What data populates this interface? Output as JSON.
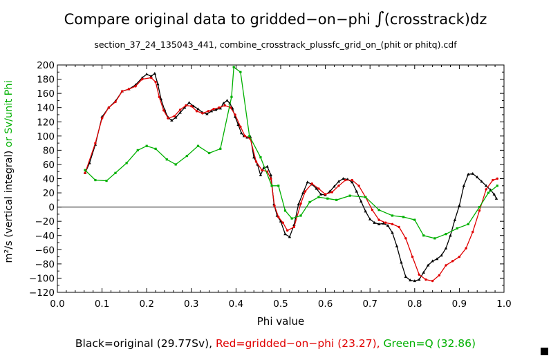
{
  "title": {
    "prefix": "Compare original data to gridded−on−phi ",
    "integral_symbol": "∫",
    "suffix": "(crosstrack)dz"
  },
  "subtitle": "section_37_24_135043_441, combine_crosstrack_plussfc_grid_on_(phit or phitq).cdf",
  "legend": {
    "black": "Black=original (29.77Sv), ",
    "red": "Red=gridded−on−phi (23.27), ",
    "green": "Green=Q (32.86)"
  },
  "chart_data": {
    "type": "line",
    "xlabel": "Phi value",
    "ylabel_black": "m²/s (vertical integral)",
    "ylabel_green": " or Sv/unit Phi",
    "xlim": [
      0.0,
      1.0
    ],
    "ylim": [
      -120,
      200
    ],
    "x_ticks": [
      "0.0",
      "0.1",
      "0.2",
      "0.3",
      "0.4",
      "0.5",
      "0.6",
      "0.7",
      "0.8",
      "0.9",
      "1.0"
    ],
    "y_ticks": [
      "-120",
      "-100",
      "-80",
      "-60",
      "-40",
      "-20",
      "0",
      "20",
      "40",
      "60",
      "80",
      "100",
      "120",
      "140",
      "160",
      "180",
      "200"
    ],
    "zero_line": true,
    "series": [
      {
        "name": "original",
        "color": "#000000",
        "marker": "triangle",
        "x": [
          0.062,
          0.072,
          0.085,
          0.1,
          0.115,
          0.13,
          0.145,
          0.16,
          0.175,
          0.19,
          0.2,
          0.21,
          0.218,
          0.225,
          0.232,
          0.24,
          0.248,
          0.256,
          0.265,
          0.275,
          0.285,
          0.295,
          0.305,
          0.315,
          0.325,
          0.335,
          0.345,
          0.355,
          0.365,
          0.372,
          0.38,
          0.386,
          0.392,
          0.398,
          0.405,
          0.412,
          0.418,
          0.425,
          0.432,
          0.44,
          0.448,
          0.455,
          0.462,
          0.47,
          0.478,
          0.485,
          0.492,
          0.5,
          0.51,
          0.52,
          0.53,
          0.54,
          0.55,
          0.56,
          0.57,
          0.58,
          0.59,
          0.6,
          0.61,
          0.62,
          0.63,
          0.64,
          0.65,
          0.66,
          0.67,
          0.68,
          0.69,
          0.7,
          0.71,
          0.72,
          0.73,
          0.74,
          0.75,
          0.76,
          0.77,
          0.78,
          0.79,
          0.8,
          0.81,
          0.82,
          0.83,
          0.84,
          0.85,
          0.86,
          0.87,
          0.88,
          0.89,
          0.9,
          0.91,
          0.92,
          0.93,
          0.94,
          0.95,
          0.96,
          0.97,
          0.978,
          0.983
        ],
        "y": [
          48,
          62,
          88,
          127,
          140,
          149,
          163,
          166,
          172,
          182,
          187,
          184,
          188,
          173,
          152,
          137,
          126,
          122,
          126,
          133,
          140,
          147,
          142,
          138,
          133,
          131,
          135,
          137,
          139,
          146,
          150,
          146,
          139,
          127,
          116,
          104,
          100,
          98,
          99,
          70,
          60,
          45,
          55,
          57,
          45,
          4,
          -12,
          -20,
          -38,
          -42,
          -25,
          4,
          20,
          35,
          32,
          26,
          18,
          17,
          22,
          29,
          36,
          40,
          39,
          35,
          22,
          8,
          -6,
          -17,
          -22,
          -24,
          -23,
          -26,
          -36,
          -55,
          -78,
          -98,
          -103,
          -104,
          -102,
          -92,
          -82,
          -76,
          -73,
          -68,
          -58,
          -40,
          -18,
          2,
          30,
          46,
          47,
          42,
          36,
          30,
          24,
          18,
          12
        ]
      },
      {
        "name": "gridded-on-phi",
        "color": "#e00000",
        "marker": "circle",
        "x": [
          0.062,
          0.085,
          0.1,
          0.115,
          0.13,
          0.145,
          0.16,
          0.175,
          0.19,
          0.21,
          0.22,
          0.228,
          0.238,
          0.248,
          0.262,
          0.275,
          0.288,
          0.3,
          0.312,
          0.325,
          0.338,
          0.35,
          0.362,
          0.375,
          0.388,
          0.398,
          0.41,
          0.42,
          0.432,
          0.445,
          0.458,
          0.47,
          0.478,
          0.486,
          0.495,
          0.505,
          0.515,
          0.53,
          0.545,
          0.555,
          0.57,
          0.585,
          0.6,
          0.615,
          0.63,
          0.645,
          0.66,
          0.675,
          0.69,
          0.705,
          0.72,
          0.735,
          0.75,
          0.765,
          0.78,
          0.795,
          0.81,
          0.825,
          0.84,
          0.855,
          0.87,
          0.885,
          0.9,
          0.915,
          0.93,
          0.945,
          0.96,
          0.975,
          0.985
        ],
        "y": [
          48,
          90,
          125,
          140,
          148,
          163,
          166,
          170,
          180,
          182,
          176,
          155,
          136,
          125,
          128,
          137,
          143,
          142,
          135,
          132,
          135,
          138,
          140,
          143,
          140,
          130,
          113,
          100,
          96,
          64,
          52,
          50,
          40,
          2,
          -14,
          -22,
          -33,
          -28,
          5,
          22,
          33,
          26,
          18,
          21,
          30,
          38,
          38,
          30,
          14,
          -4,
          -18,
          -22,
          -24,
          -28,
          -44,
          -70,
          -95,
          -102,
          -104,
          -96,
          -82,
          -76,
          -70,
          -58,
          -35,
          -5,
          25,
          38,
          40
        ]
      },
      {
        "name": "Q",
        "color": "#00b000",
        "marker": "square",
        "x": [
          0.062,
          0.085,
          0.11,
          0.13,
          0.155,
          0.18,
          0.2,
          0.22,
          0.245,
          0.265,
          0.29,
          0.315,
          0.34,
          0.365,
          0.39,
          0.395,
          0.41,
          0.43,
          0.455,
          0.48,
          0.495,
          0.51,
          0.525,
          0.545,
          0.565,
          0.585,
          0.605,
          0.625,
          0.655,
          0.69,
          0.72,
          0.75,
          0.775,
          0.8,
          0.82,
          0.845,
          0.87,
          0.895,
          0.92,
          0.945,
          0.965,
          0.985
        ],
        "y": [
          52,
          38,
          37,
          48,
          62,
          80,
          86,
          82,
          67,
          60,
          72,
          86,
          76,
          82,
          155,
          197,
          190,
          100,
          70,
          30,
          30,
          -5,
          -16,
          -12,
          7,
          14,
          12,
          10,
          16,
          14,
          -4,
          -12,
          -14,
          -18,
          -40,
          -44,
          -38,
          -30,
          -24,
          0,
          20,
          30
        ]
      }
    ]
  }
}
